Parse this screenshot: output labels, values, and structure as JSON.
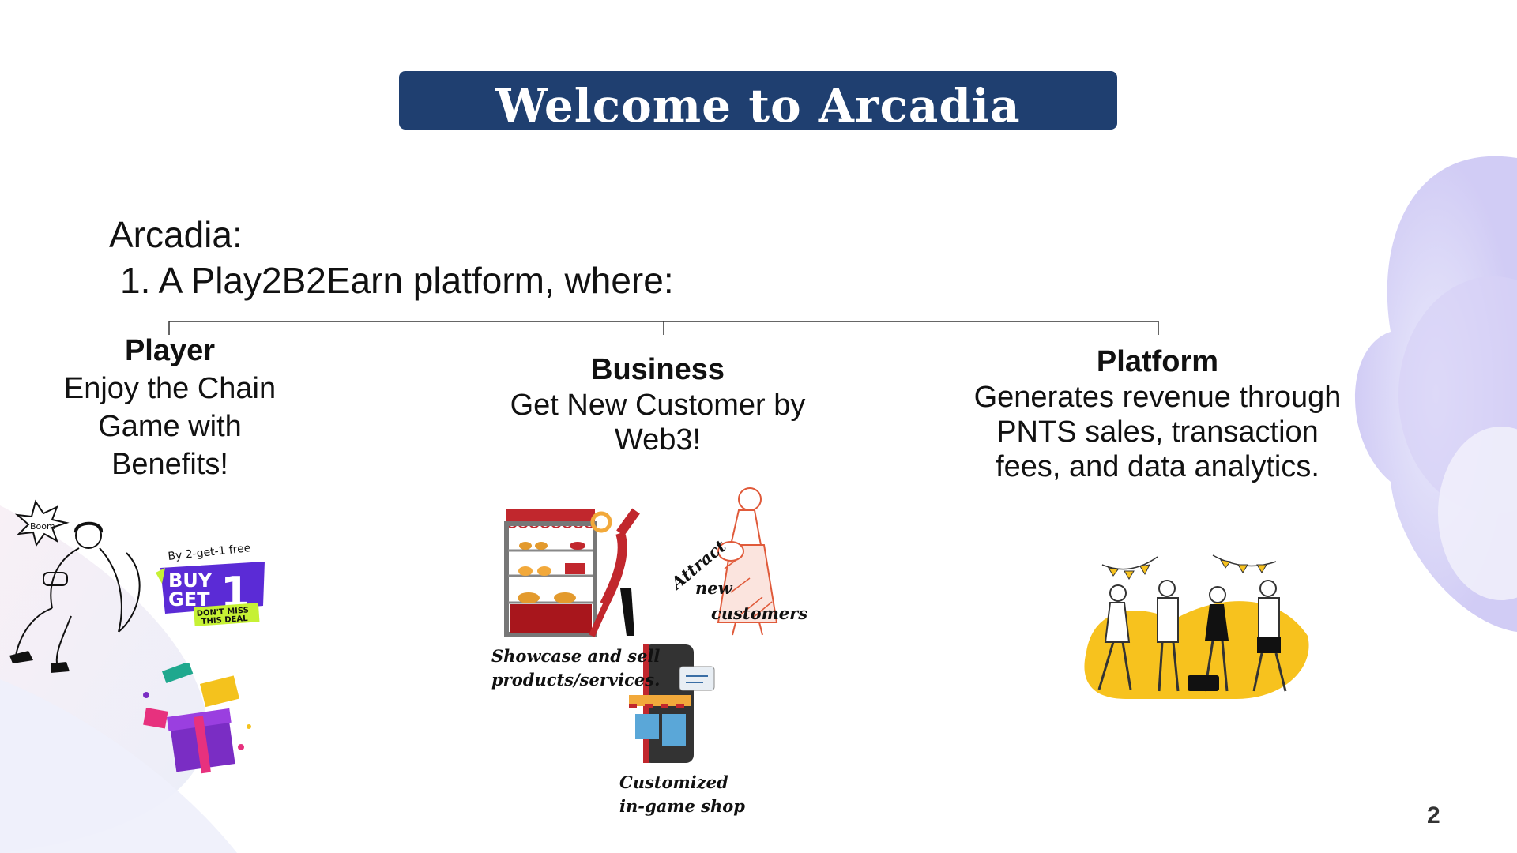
{
  "slide": {
    "title": "Welcome to Arcadia",
    "intro_line1": "Arcadia:",
    "intro_line2": "1. A Play2B2Earn platform, where:",
    "page_number": "2"
  },
  "columns": {
    "player": {
      "heading": "Player",
      "description": "Enjoy the Chain Game with Benefits!"
    },
    "business": {
      "heading": "Business",
      "description": "Get New Customer by Web3!"
    },
    "platform": {
      "heading": "Platform",
      "description": "Generates revenue through PNTS sales, transaction fees, and data analytics."
    }
  },
  "illustrations": {
    "player_badge": {
      "top_text": "By 2-get-1 free",
      "main_text_1": "BUY",
      "main_text_2": "GET",
      "number": "1",
      "deal_text_1": "DON'T MISS",
      "deal_text_2": "THIS DEAL"
    },
    "player_bubble": "Boom",
    "business_captions": {
      "showcase_1": "Showcase and sell",
      "showcase_2": "products/services.",
      "attract_1": "Attract",
      "attract_2": "new",
      "attract_3": "customers",
      "shop_1": "Customized",
      "shop_2": "in-game shop"
    }
  },
  "colors": {
    "title_bar": "#1f3f70",
    "badge_purple": "#5b2bd6",
    "badge_green": "#c6f135",
    "party_yellow": "#f7c21e",
    "shop_red": "#c1272d"
  }
}
